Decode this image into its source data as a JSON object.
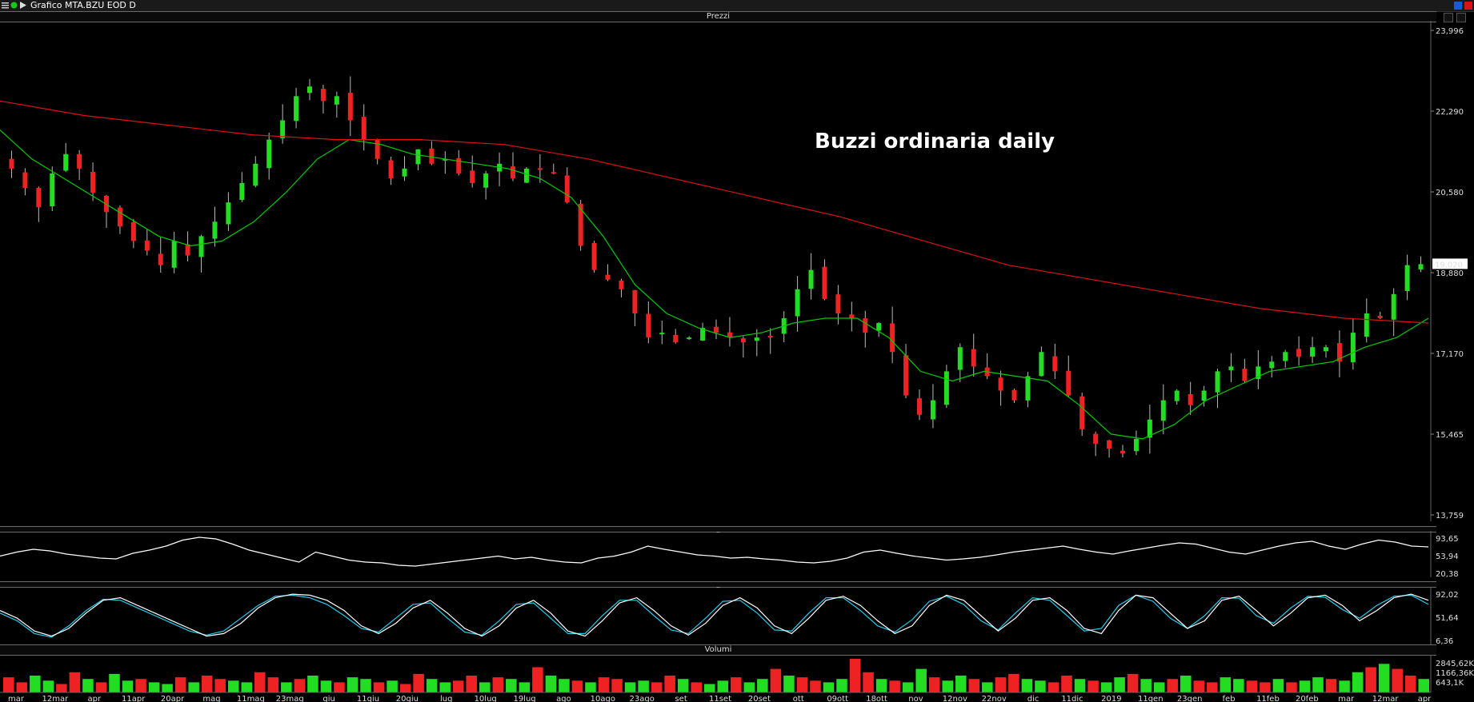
{
  "window": {
    "title": "Grafico MTA.BZU EOD D"
  },
  "panels": {
    "price_title": "Prezzi",
    "rsi_title": "_",
    "stoch_title": "_",
    "volume_title": "Volumi"
  },
  "chart_data": [
    {
      "type": "candlestick",
      "title": "Buzzi ordinaria daily",
      "yticks": [
        "23,996",
        "22,290",
        "20,580",
        "18,880",
        "17,170",
        "15,465",
        "13,759"
      ],
      "ylim": [
        13.759,
        23.996
      ],
      "last_price_label": "19,020",
      "last_price": 19.02,
      "xticks": [
        "mar",
        "12mar",
        "apr",
        "11apr",
        "20apr",
        "mag",
        "11mag",
        "23mag",
        "giu",
        "11giu",
        "20giu",
        "lug",
        "10lug",
        "19lug",
        "ago",
        "10ago",
        "23ago",
        "set",
        "11set",
        "20set",
        "ott",
        "09ott",
        "18ott",
        "nov",
        "12nov",
        "22nov",
        "dic",
        "11dic",
        "2019",
        "11gen",
        "23gen",
        "feb",
        "11feb",
        "20feb",
        "mar",
        "12mar",
        "apr"
      ],
      "series": [
        {
          "name": "",
          "kind": "close",
          "color": "#22dd22"
        },
        {
          "name": "",
          "kind": "ma20",
          "color": "#00cc00"
        },
        {
          "name": "",
          "kind": "ma200",
          "color": "#dd1111"
        }
      ],
      "close": [
        21.0,
        20.6,
        20.2,
        20.9,
        21.3,
        21.0,
        20.5,
        20.1,
        19.8,
        19.5,
        19.3,
        19.0,
        19.5,
        19.2,
        19.6,
        19.9,
        20.3,
        20.7,
        21.1,
        21.6,
        22.0,
        22.5,
        22.7,
        22.4,
        22.5,
        22.0,
        21.6,
        21.2,
        20.8,
        21.0,
        21.4,
        21.1,
        21.2,
        20.9,
        20.7,
        20.9,
        21.1,
        20.8,
        21.0,
        21.0,
        20.9,
        20.3,
        19.4,
        18.9,
        18.7,
        18.5,
        18.0,
        17.5,
        17.6,
        17.4,
        17.5,
        17.7,
        17.6,
        17.5,
        17.4,
        17.5,
        17.5,
        17.9,
        18.5,
        18.9,
        18.3,
        18.0,
        17.9,
        17.6,
        17.8,
        17.2,
        16.3,
        15.9,
        16.2,
        16.8,
        17.3,
        16.9,
        16.7,
        16.4,
        16.2,
        16.7,
        17.2,
        16.8,
        16.3,
        15.6,
        15.3,
        15.2,
        15.1,
        15.4,
        15.8,
        16.2,
        16.4,
        16.1,
        16.4,
        16.8,
        16.9,
        16.6,
        16.9,
        17.0,
        17.2,
        17.1,
        17.3,
        17.3,
        17.0,
        17.6,
        18.0,
        17.9,
        18.4,
        19.0,
        19.02
      ],
      "ma20": [
        21.8,
        21.2,
        20.8,
        20.4,
        20.0,
        19.6,
        19.4,
        19.5,
        19.9,
        20.5,
        21.2,
        21.6,
        21.5,
        21.3,
        21.2,
        21.1,
        21.0,
        20.8,
        20.4,
        19.6,
        18.6,
        18.0,
        17.7,
        17.5,
        17.6,
        17.8,
        17.9,
        17.9,
        17.5,
        16.8,
        16.6,
        16.8,
        16.7,
        16.6,
        16.1,
        15.5,
        15.4,
        15.7,
        16.2,
        16.5,
        16.8,
        16.9,
        17.0,
        17.3,
        17.5,
        17.9
      ],
      "ma200": [
        22.4,
        22.1,
        21.9,
        21.7,
        21.6,
        21.6,
        21.5,
        21.2,
        20.8,
        20.4,
        20.0,
        19.5,
        19.0,
        18.7,
        18.4,
        18.1,
        17.9,
        17.8
      ]
    },
    {
      "type": "line",
      "yticks": [
        "93,65",
        "53,94",
        "20,38"
      ],
      "ylim": [
        14.23,
        93.65
      ],
      "series": [
        {
          "name": "",
          "color": "#ffffff",
          "values": [
            45,
            55,
            62,
            58,
            50,
            45,
            40,
            38,
            52,
            60,
            70,
            85,
            92,
            88,
            75,
            60,
            50,
            40,
            30,
            55,
            45,
            35,
            30,
            28,
            22,
            20,
            25,
            30,
            35,
            40,
            45,
            38,
            42,
            35,
            30,
            28,
            40,
            45,
            55,
            70,
            62,
            55,
            48,
            45,
            40,
            42,
            38,
            35,
            30,
            28,
            32,
            40,
            55,
            60,
            52,
            45,
            40,
            35,
            38,
            42,
            48,
            55,
            60,
            65,
            70,
            62,
            55,
            50,
            58,
            65,
            72,
            78,
            75,
            65,
            55,
            50,
            60,
            70,
            78,
            82,
            70,
            62,
            75,
            85,
            80,
            70,
            68
          ]
        }
      ]
    },
    {
      "type": "line",
      "yticks": [
        "92,02",
        "51,64",
        "6,36"
      ],
      "ylim": [
        6.36,
        92.02
      ],
      "series": [
        {
          "name": "",
          "color": "#ffffff",
          "values": [
            60,
            45,
            20,
            10,
            25,
            55,
            80,
            85,
            70,
            55,
            40,
            25,
            10,
            15,
            35,
            65,
            85,
            92,
            90,
            80,
            60,
            30,
            15,
            35,
            65,
            80,
            55,
            25,
            10,
            30,
            65,
            80,
            55,
            20,
            10,
            40,
            75,
            85,
            60,
            30,
            12,
            35,
            70,
            85,
            65,
            30,
            15,
            45,
            80,
            88,
            70,
            40,
            15,
            30,
            70,
            90,
            80,
            50,
            20,
            45,
            80,
            85,
            60,
            25,
            15,
            60,
            90,
            85,
            55,
            25,
            40,
            80,
            88,
            60,
            30,
            55,
            85,
            90,
            70,
            40,
            60,
            85,
            92,
            80
          ]
        },
        {
          "name": "",
          "color": "#22ccee",
          "values": [
            55,
            40,
            15,
            8,
            30,
            60,
            82,
            80,
            65,
            50,
            35,
            20,
            12,
            20,
            45,
            70,
            88,
            90,
            85,
            72,
            50,
            25,
            18,
            45,
            72,
            75,
            45,
            18,
            12,
            40,
            72,
            75,
            45,
            15,
            15,
            50,
            80,
            80,
            50,
            22,
            15,
            45,
            78,
            80,
            55,
            22,
            20,
            55,
            85,
            85,
            60,
            30,
            18,
            42,
            78,
            88,
            72,
            40,
            22,
            55,
            85,
            80,
            50,
            20,
            25,
            70,
            90,
            78,
            45,
            25,
            50,
            85,
            84,
            50,
            35,
            65,
            88,
            86,
            62,
            45,
            70,
            88,
            90,
            72
          ]
        }
      ]
    },
    {
      "type": "bar",
      "yticks": [
        "2845,62K",
        "1166,36K",
        "643,1K"
      ],
      "series": [
        {
          "name": "",
          "values": [
            0.45,
            0.3,
            0.5,
            0.35,
            0.25,
            0.6,
            0.4,
            0.3,
            0.55,
            0.35,
            0.4,
            0.3,
            0.25,
            0.45,
            0.3,
            0.5,
            0.4,
            0.35,
            0.3,
            0.6,
            0.45,
            0.3,
            0.4,
            0.5,
            0.35,
            0.3,
            0.45,
            0.4,
            0.3,
            0.35,
            0.25,
            0.55,
            0.4,
            0.3,
            0.35,
            0.5,
            0.3,
            0.45,
            0.4,
            0.3,
            0.75,
            0.5,
            0.4,
            0.35,
            0.3,
            0.45,
            0.4,
            0.3,
            0.35,
            0.3,
            0.5,
            0.4,
            0.3,
            0.25,
            0.35,
            0.45,
            0.3,
            0.4,
            0.7,
            0.5,
            0.45,
            0.35,
            0.3,
            0.4,
            1.0,
            0.6,
            0.4,
            0.35,
            0.3,
            0.7,
            0.45,
            0.35,
            0.5,
            0.4,
            0.3,
            0.45,
            0.55,
            0.4,
            0.35,
            0.3,
            0.5,
            0.4,
            0.35,
            0.3,
            0.45,
            0.55,
            0.4,
            0.3,
            0.4,
            0.5,
            0.35,
            0.3,
            0.45,
            0.4,
            0.35,
            0.3,
            0.4,
            0.3,
            0.35,
            0.45,
            0.4,
            0.35,
            0.6,
            0.75,
            0.85,
            0.7,
            0.5,
            0.4
          ]
        }
      ]
    }
  ]
}
